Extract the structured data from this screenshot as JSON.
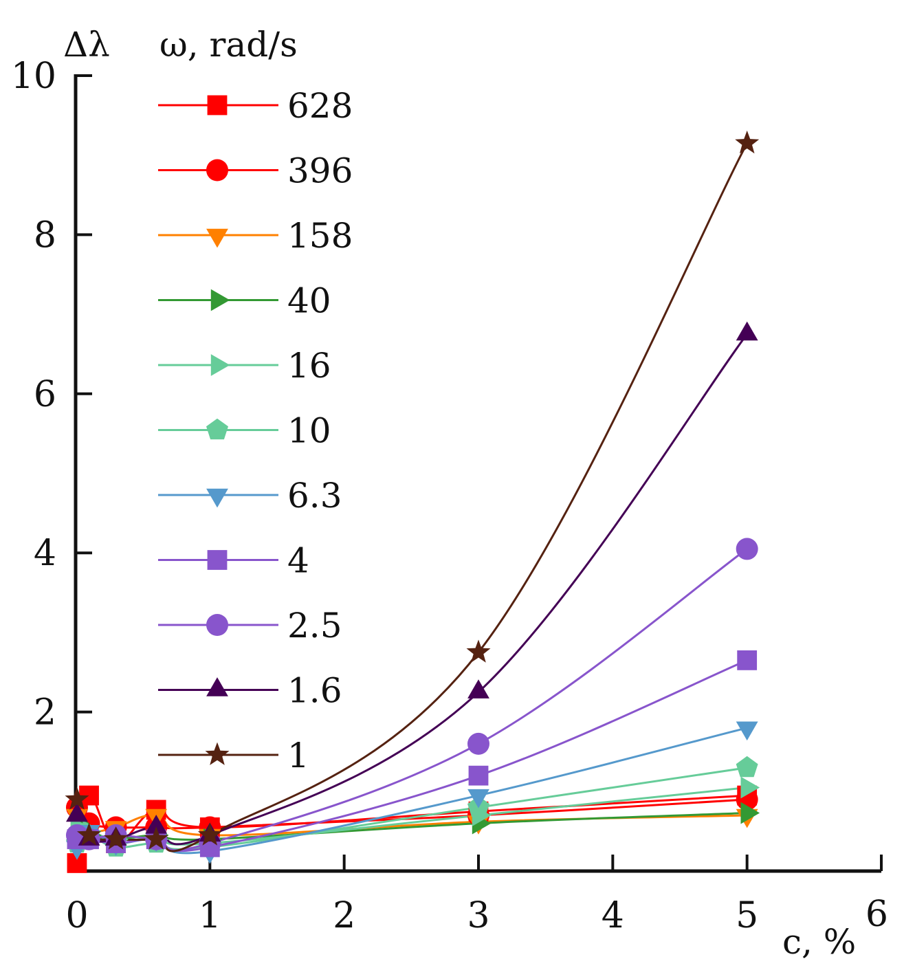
{
  "chart_data": {
    "type": "line",
    "title": "",
    "ylabel": "Δλ",
    "xlabel": "c, %",
    "legend_title": "ω, rad/s",
    "legend_position": "top-left",
    "xlim": [
      0,
      6
    ],
    "ylim": [
      0,
      10
    ],
    "x_ticks": [
      0,
      1,
      2,
      3,
      4,
      5,
      6
    ],
    "y_ticks": [
      2,
      4,
      6,
      8,
      10
    ],
    "grid": false,
    "x": [
      0.01,
      0.1,
      0.3,
      0.6,
      1,
      3,
      5
    ],
    "series": [
      {
        "name": "628",
        "color": "#ff0000",
        "marker": "square",
        "values": [
          0.1,
          0.95,
          0.35,
          0.77,
          0.55,
          0.75,
          0.95
        ]
      },
      {
        "name": "396",
        "color": "#ff0000",
        "marker": "circle",
        "values": [
          0.8,
          0.6,
          0.55,
          0.55,
          0.55,
          0.7,
          0.9
        ]
      },
      {
        "name": "158",
        "color": "#ff8000",
        "marker": "triangle-down",
        "values": [
          0.7,
          0.5,
          0.55,
          0.7,
          0.45,
          0.62,
          0.7
        ]
      },
      {
        "name": "40",
        "color": "#339933",
        "marker": "triangle-right",
        "values": [
          0.6,
          0.45,
          0.4,
          0.45,
          0.4,
          0.6,
          0.73
        ]
      },
      {
        "name": "16",
        "color": "#66cc99",
        "marker": "triangle-right",
        "values": [
          0.55,
          0.5,
          0.4,
          0.4,
          0.35,
          0.7,
          1.05
        ]
      },
      {
        "name": "10",
        "color": "#66cc99",
        "marker": "pentagon",
        "values": [
          0.35,
          0.45,
          0.3,
          0.35,
          0.3,
          0.8,
          1.3
        ]
      },
      {
        "name": "6.3",
        "color": "#5599cc",
        "marker": "triangle-down",
        "values": [
          0.3,
          0.5,
          0.35,
          0.4,
          0.25,
          0.95,
          1.8
        ]
      },
      {
        "name": "4",
        "color": "#8855cc",
        "marker": "square",
        "values": [
          0.4,
          0.4,
          0.35,
          0.4,
          0.3,
          1.2,
          2.65
        ]
      },
      {
        "name": "2.5",
        "color": "#8855cc",
        "marker": "circle",
        "values": [
          0.45,
          0.4,
          0.45,
          0.4,
          0.35,
          1.6,
          4.05
        ]
      },
      {
        "name": "1.6",
        "color": "#440055",
        "marker": "triangle-up",
        "values": [
          0.7,
          0.4,
          0.4,
          0.55,
          0.45,
          2.25,
          6.75
        ]
      },
      {
        "name": "1",
        "color": "#552211",
        "marker": "star",
        "values": [
          0.9,
          0.45,
          0.4,
          0.4,
          0.45,
          2.75,
          9.15
        ]
      }
    ]
  }
}
